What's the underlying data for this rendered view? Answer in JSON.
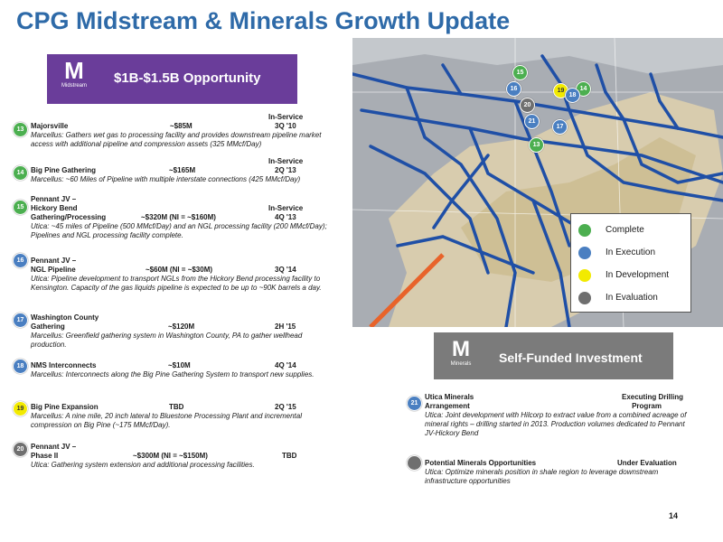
{
  "title": "CPG Midstream & Minerals Growth Update",
  "midstream_banner": {
    "logo": "M",
    "logo_sub": "Midstream",
    "text": "$1B-$1.5B Opportunity"
  },
  "minerals_banner": {
    "logo": "M",
    "logo_sub": "Minerals",
    "text": "Self-Funded Investment"
  },
  "colors": {
    "complete": "#4caf50",
    "execution": "#4a7fc1",
    "development": "#f2ea00",
    "evaluation": "#6f6f6f",
    "title": "#2e6aa8",
    "midstream": "#6a3d9a"
  },
  "legend": [
    {
      "label": "Complete",
      "status": "complete"
    },
    {
      "label": "In Execution",
      "status": "execution"
    },
    {
      "label": "In Development",
      "status": "development"
    },
    {
      "label": "In Evaluation",
      "status": "evaluation"
    }
  ],
  "projects": [
    {
      "num": "13",
      "status": "complete",
      "label_top": "In-Service",
      "name": "Majorsville",
      "cost": "~$85M",
      "date": "3Q '10",
      "desc": "Marcellus: Gathers wet gas to processing facility and provides downstream pipeline market access with additional pipeline and compression assets (325 MMcf/Day)"
    },
    {
      "num": "14",
      "status": "complete",
      "label_top": "In-Service",
      "name": "Big Pine Gathering",
      "cost": "~$165M",
      "date": "2Q '13",
      "desc": "Marcellus: ~60 Miles of Pipeline with multiple interstate connections (425 MMcf/Day)"
    },
    {
      "num": "15",
      "status": "complete",
      "name_l1": "Pennant JV –",
      "name_l2": "Hickory Bend",
      "label_top": "In-Service",
      "name_l3": "Gathering/Processing",
      "cost": "~$320M (NI = ~$160M)",
      "date": "4Q '13",
      "desc": "Utica: ~45 miles of Pipeline (500 MMcf/Day) and an NGL processing facility (200 MMcf/Day); Pipelines and NGL processing facility complete."
    },
    {
      "num": "16",
      "status": "execution",
      "name_l1": "Pennant JV –",
      "name_l2": "NGL Pipeline",
      "cost": "~$60M (NI = ~$30M)",
      "date": "3Q '14",
      "desc": "Utica: Pipeline development to transport NGLs from the Hickory Bend processing facility to Kensington.  Capacity of the gas liquids pipeline is expected to be up to ~90K barrels a day."
    },
    {
      "num": "17",
      "status": "execution",
      "name_l1": "Washington County",
      "name_l2": "Gathering",
      "cost": "~$120M",
      "date": "2H '15",
      "desc": "Marcellus: Greenfield gathering system in Washington County, PA to gather wellhead production."
    },
    {
      "num": "18",
      "status": "execution",
      "name": "NMS Interconnects",
      "cost": "~$10M",
      "date": "4Q '14",
      "desc": "Marcellus: Interconnects along the Big Pine Gathering System to transport new supplies."
    },
    {
      "num": "19",
      "status": "development",
      "name": "Big Pine Expansion",
      "cost": "TBD",
      "date": "2Q '15",
      "desc": "Marcellus: A nine mile, 20 inch lateral to Bluestone Processing Plant and incremental compression on Big Pine (~175 MMcf/Day)."
    },
    {
      "num": "20",
      "status": "evaluation",
      "name_l1": "Pennant JV –",
      "name_l2": "Phase II",
      "cost": "~$300M (NI = ~$150M)",
      "date": "TBD",
      "desc": "Utica: Gathering system extension and additional processing facilities."
    }
  ],
  "minerals": [
    {
      "num": "21",
      "status": "execution",
      "name_l1": "Utica Minerals",
      "name_l2": "Arrangement",
      "stat_l1": "Executing Drilling",
      "stat_l2": "Program",
      "desc": "Utica: Joint development with Hilcorp to extract value from a combined acreage of mineral rights – drilling started in 2013.  Production volumes dedicated to Pennant JV-Hickory Bend"
    },
    {
      "num": "",
      "status": "evaluation",
      "name_l1": "Potential Minerals Opportunities",
      "stat_l1": "Under Evaluation",
      "desc": "Utica: Optimize minerals position in shale region to leverage downstream infrastructure opportunities"
    }
  ],
  "map_markers": [
    {
      "num": "15",
      "status": "complete"
    },
    {
      "num": "16",
      "status": "execution"
    },
    {
      "num": "19",
      "status": "development"
    },
    {
      "num": "14",
      "status": "complete"
    },
    {
      "num": "18",
      "status": "execution"
    },
    {
      "num": "20",
      "status": "evaluation"
    },
    {
      "num": "21",
      "status": "execution"
    },
    {
      "num": "17",
      "status": "execution"
    },
    {
      "num": "13",
      "status": "complete"
    }
  ],
  "page_number": "14"
}
